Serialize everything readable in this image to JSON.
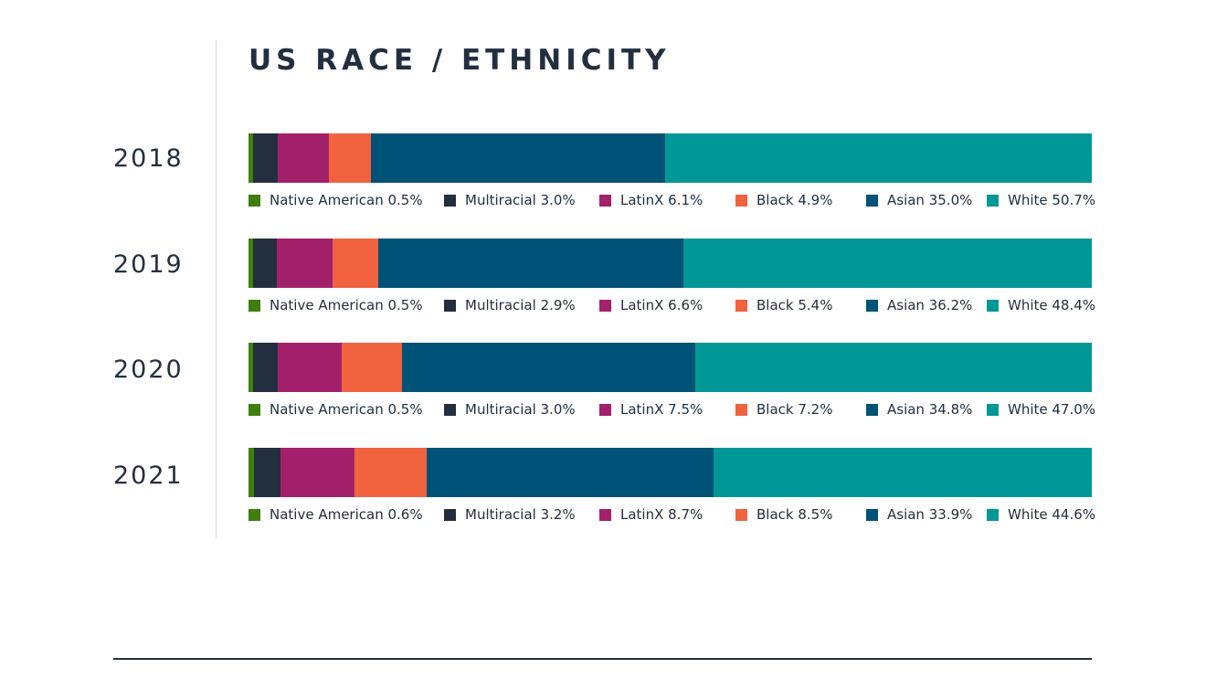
{
  "title": "US RACE / ETHNICITY",
  "colors": {
    "Native American": "#3f7f11",
    "Multiracial": "#232f3e",
    "LatinX": "#a3216b",
    "Black": "#f1633f",
    "Asian": "#005276",
    "White": "#009896"
  },
  "chart_data": {
    "type": "bar",
    "orientation": "horizontal",
    "stacked": true,
    "categories": [
      "2018",
      "2019",
      "2020",
      "2021"
    ],
    "series": [
      {
        "name": "Native American",
        "values": [
          0.5,
          0.5,
          0.5,
          0.6
        ]
      },
      {
        "name": "Multiracial",
        "values": [
          3.0,
          2.9,
          3.0,
          3.2
        ]
      },
      {
        "name": "LatinX",
        "values": [
          6.1,
          6.6,
          7.5,
          8.7
        ]
      },
      {
        "name": "Black",
        "values": [
          4.9,
          5.4,
          7.2,
          8.5
        ]
      },
      {
        "name": "Asian",
        "values": [
          35.0,
          36.2,
          34.8,
          33.9
        ]
      },
      {
        "name": "White",
        "values": [
          50.7,
          48.4,
          47.0,
          44.6
        ]
      }
    ],
    "unit": "%",
    "title": "US RACE / ETHNICITY"
  }
}
